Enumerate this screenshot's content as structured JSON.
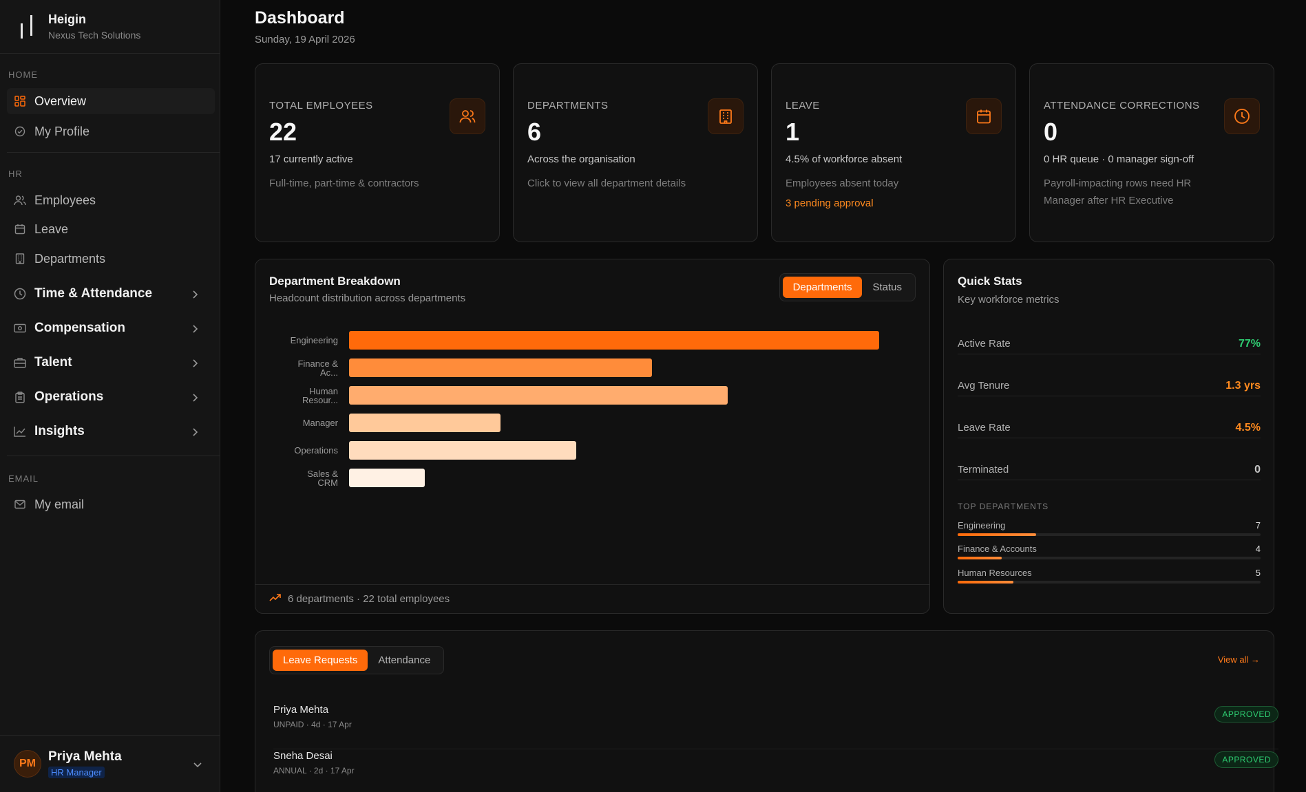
{
  "app": {
    "name": "Heigin",
    "org": "Nexus Tech Solutions"
  },
  "sidebar": {
    "sections": {
      "home": "HOME",
      "hr": "HR",
      "email": "EMAIL"
    },
    "items": {
      "overview": "Overview",
      "my_profile": "My Profile",
      "employees": "Employees",
      "leave": "Leave",
      "departments": "Departments",
      "time_attendance": "Time & Attendance",
      "compensation": "Compensation",
      "talent": "Talent",
      "operations": "Operations",
      "insights": "Insights",
      "my_email": "My email"
    },
    "user": {
      "initials": "PM",
      "name": "Priya Mehta",
      "role": "HR Manager"
    }
  },
  "header": {
    "title": "Dashboard",
    "date": "Sunday, 19 April 2026"
  },
  "stats": {
    "total_employees": {
      "label": "TOTAL EMPLOYEES",
      "value": "22",
      "sub": "17 currently active",
      "desc": "Full-time, part-time & contractors",
      "icon": "users-icon"
    },
    "departments": {
      "label": "DEPARTMENTS",
      "value": "6",
      "sub": "Across the organisation",
      "desc": "Click to view all department details",
      "icon": "building-icon"
    },
    "leave": {
      "label": "LEAVE",
      "value": "1",
      "sub": "4.5% of workforce absent",
      "desc": "Employees absent today",
      "pending": "3 pending approval",
      "icon": "calendar-icon"
    },
    "attendance": {
      "label": "ATTENDANCE CORRECTIONS",
      "value": "0",
      "sub": "0 HR queue · 0 manager sign-off",
      "desc": "Payroll-impacting rows need HR Manager after HR Executive",
      "icon": "clock-icon"
    }
  },
  "breakdown": {
    "title": "Department Breakdown",
    "subtitle": "Headcount distribution across departments",
    "toggle": [
      "Departments",
      "Status"
    ],
    "footer": "6 departments · 22 total employees"
  },
  "chart_data": {
    "type": "bar",
    "orientation": "horizontal",
    "categories": [
      [
        "Engineering"
      ],
      [
        "Finance &",
        "Ac..."
      ],
      [
        "Human",
        "Resour..."
      ],
      [
        "Manager"
      ],
      [
        "Operations"
      ],
      [
        "Sales &",
        "CRM"
      ]
    ],
    "values": [
      7,
      4,
      5,
      2,
      3,
      1
    ],
    "colors": [
      "#ff6a0a",
      "#ff8c3a",
      "#ffac6e",
      "#ffc99a",
      "#ffdcbd",
      "#fff1e4"
    ],
    "xlim": [
      0,
      8
    ],
    "grid": false,
    "legend": "none"
  },
  "quick_stats": {
    "title": "Quick Stats",
    "subtitle": "Key workforce metrics",
    "rows": [
      {
        "label": "Active Rate",
        "value": "77%",
        "color": "#2ecc71"
      },
      {
        "label": "Avg Tenure",
        "value": "1.3 yrs",
        "color": "#ff8a1f"
      },
      {
        "label": "Leave Rate",
        "value": "4.5%",
        "color": "#ff8a1f"
      },
      {
        "label": "Terminated",
        "value": "0",
        "color": "#c8c8c8"
      }
    ],
    "top_label": "TOP DEPARTMENTS",
    "top": [
      {
        "name": "Engineering",
        "count": "7",
        "fraction": 0.26
      },
      {
        "name": "Finance & Accounts",
        "count": "4",
        "fraction": 0.145
      },
      {
        "name": "Human Resources",
        "count": "5",
        "fraction": 0.185
      }
    ]
  },
  "requests": {
    "tabs": [
      "Leave Requests",
      "Attendance"
    ],
    "view_all": "View all →",
    "rows": [
      {
        "name": "Priya Mehta",
        "meta": "UNPAID · 4d · 17 Apr",
        "status": "APPROVED"
      },
      {
        "name": "Sneha Desai",
        "meta": "ANNUAL · 2d · 17 Apr",
        "status": "APPROVED"
      }
    ]
  }
}
